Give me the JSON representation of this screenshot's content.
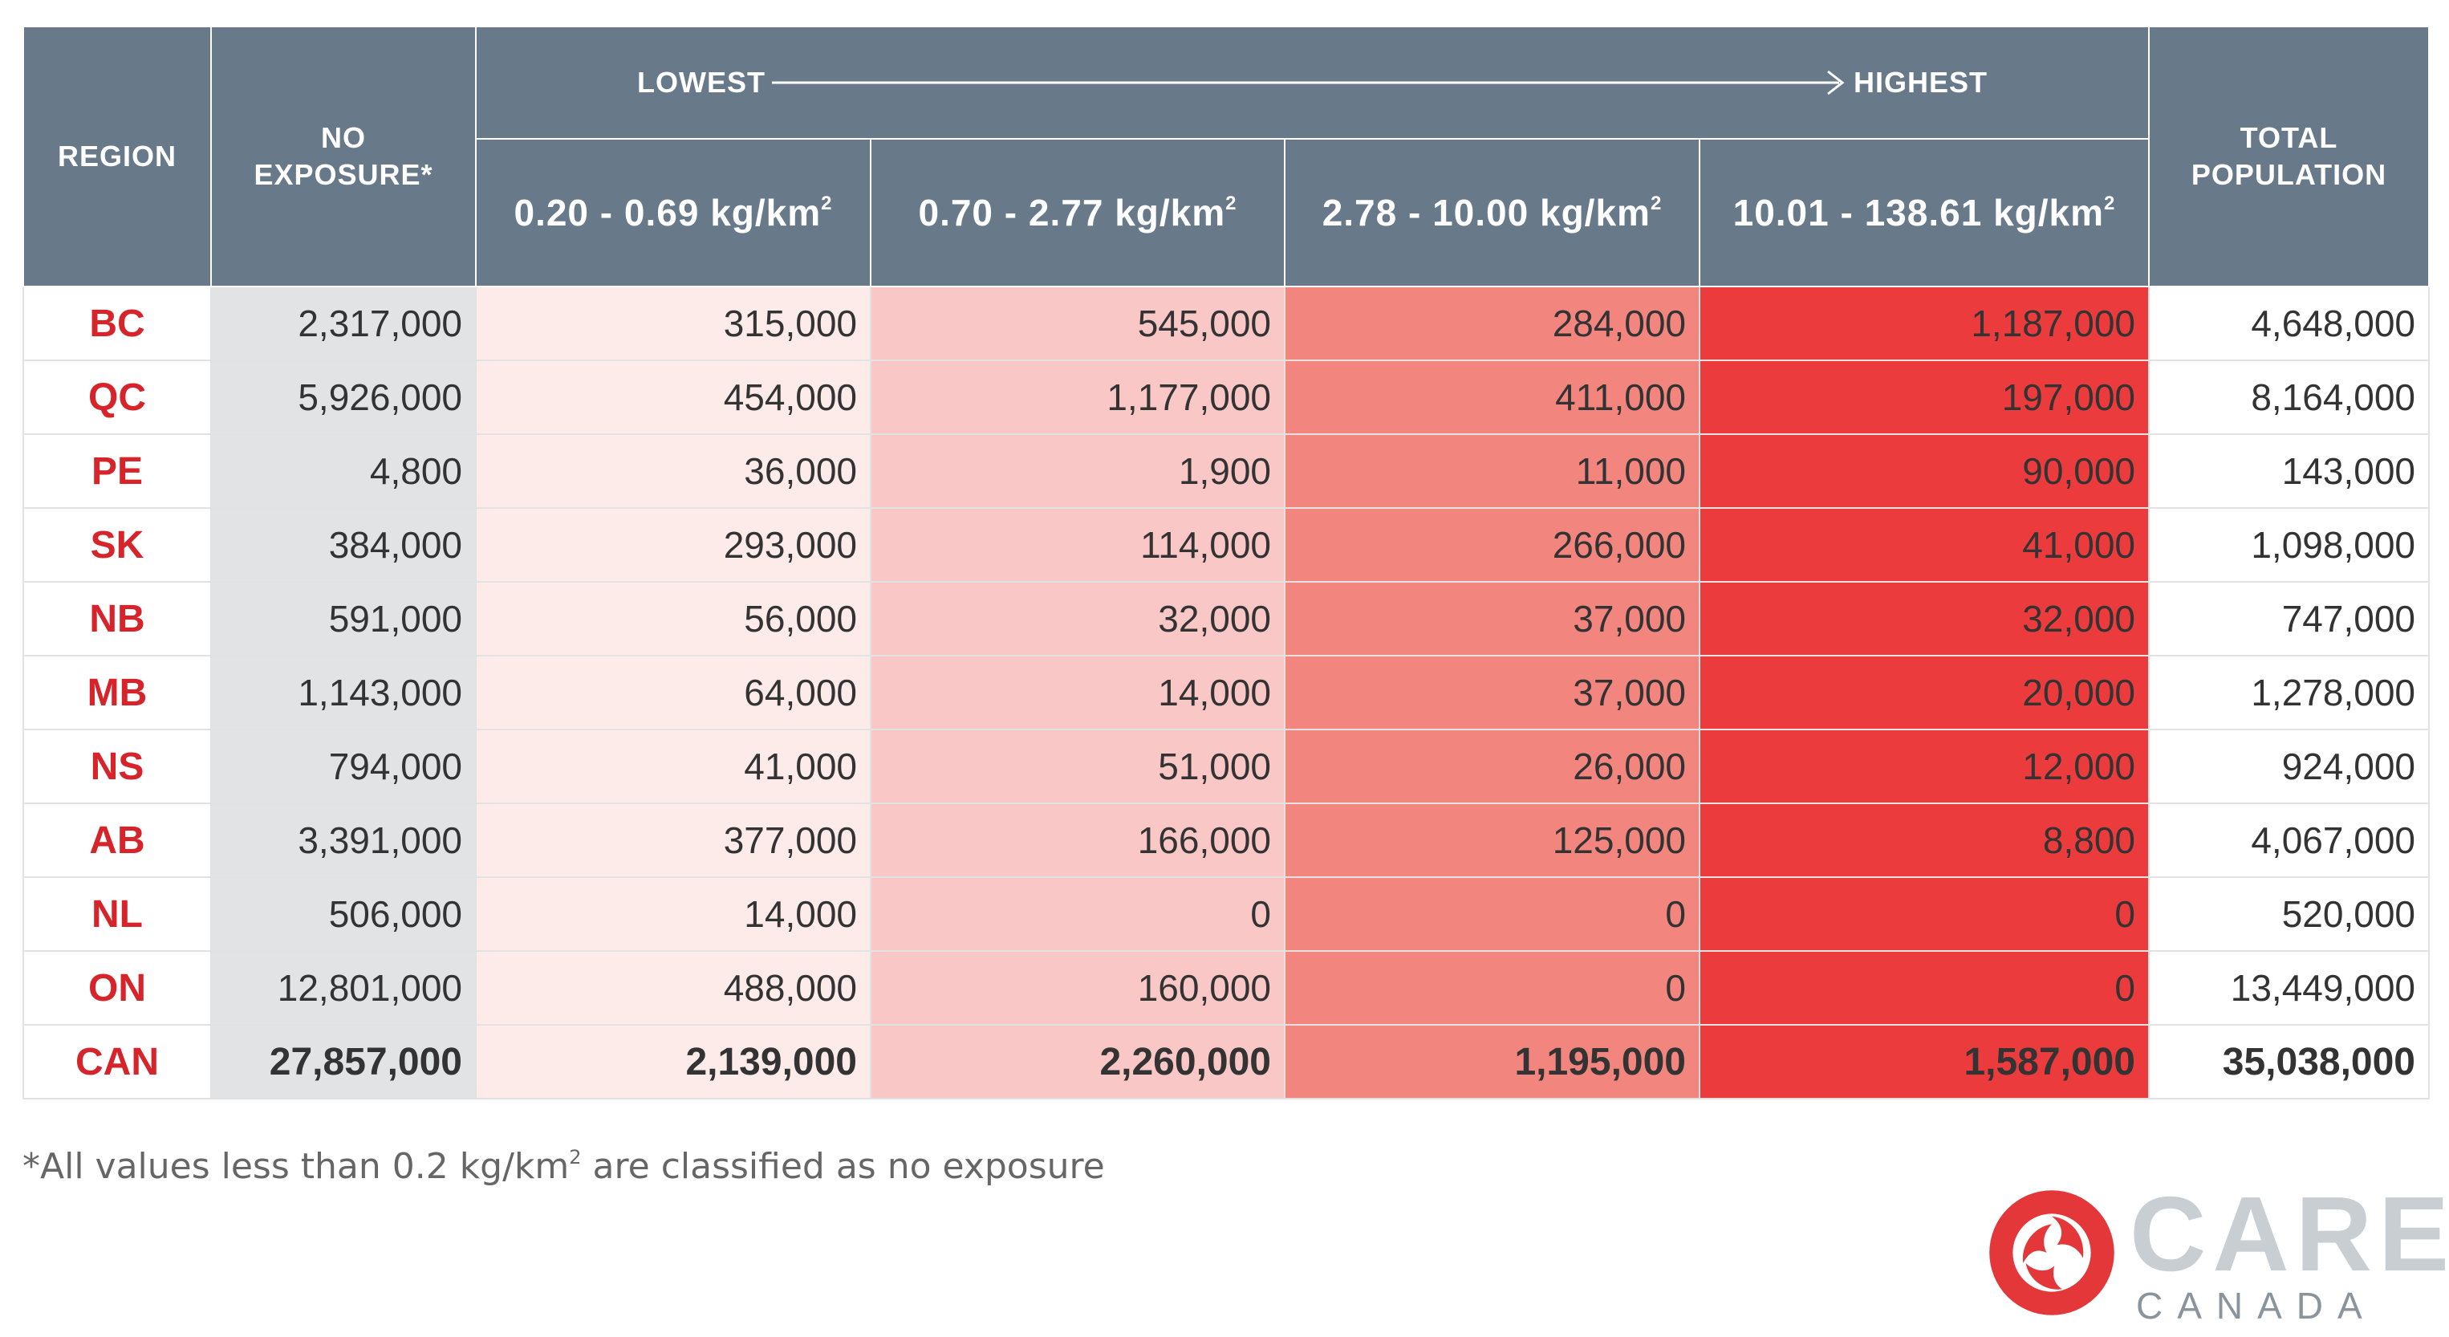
{
  "header": {
    "region": "REGION",
    "no_exposure_1": "NO",
    "no_exposure_2": "EXPOSURE*",
    "lowest": "LOWEST",
    "highest": "HIGHEST",
    "total_1": "TOTAL",
    "total_2": "POPULATION",
    "unit_sup": "2",
    "bins": [
      "0.20 - 0.69 kg/km",
      "0.70 - 2.77 kg/km",
      "2.78 - 10.00 kg/km",
      "10.01 - 138.61 kg/km"
    ]
  },
  "chart_data": {
    "type": "table",
    "columns": [
      "REGION",
      "NO EXPOSURE*",
      "0.20 - 0.69 kg/km2",
      "0.70 - 2.77 kg/km2",
      "2.78 - 10.00 kg/km2",
      "10.01 - 138.61 kg/km2",
      "TOTAL POPULATION"
    ],
    "rows": [
      [
        "BC",
        "2,317,000",
        "315,000",
        "545,000",
        "284,000",
        "1,187,000",
        "4,648,000"
      ],
      [
        "QC",
        "5,926,000",
        "454,000",
        "1,177,000",
        "411,000",
        "197,000",
        "8,164,000"
      ],
      [
        "PE",
        "4,800",
        "36,000",
        "1,900",
        "11,000",
        "90,000",
        "143,000"
      ],
      [
        "SK",
        "384,000",
        "293,000",
        "114,000",
        "266,000",
        "41,000",
        "1,098,000"
      ],
      [
        "NB",
        "591,000",
        "56,000",
        "32,000",
        "37,000",
        "32,000",
        "747,000"
      ],
      [
        "MB",
        "1,143,000",
        "64,000",
        "14,000",
        "37,000",
        "20,000",
        "1,278,000"
      ],
      [
        "NS",
        "794,000",
        "41,000",
        "51,000",
        "26,000",
        "12,000",
        "924,000"
      ],
      [
        "AB",
        "3,391,000",
        "377,000",
        "166,000",
        "125,000",
        "8,800",
        "4,067,000"
      ],
      [
        "NL",
        "506,000",
        "14,000",
        "0",
        "0",
        "0",
        "520,000"
      ],
      [
        "ON",
        "12,801,000",
        "488,000",
        "160,000",
        "0",
        "0",
        "13,449,000"
      ]
    ],
    "total_row": [
      "CAN",
      "27,857,000",
      "2,139,000",
      "2,260,000",
      "1,195,000",
      "1,587,000",
      "35,038,000"
    ]
  },
  "colors": {
    "header_bg": "#687a8a",
    "region_text": "#d6242a",
    "no_exposure_bg": "#e2e3e5",
    "bin1_bg": "#fdebea",
    "bin2_bg": "#f9c7c5",
    "bin3_bg": "#f2857e",
    "bin4_bg": "#ec3b3c"
  },
  "footnote": {
    "text_before": "*All values less than 0.2 kg/km",
    "sup": "2",
    "text_after": " are classified as no exposure"
  },
  "logo": {
    "word": "CAREX",
    "sub": "CANADA",
    "icon": "carex-swirl-icon"
  }
}
